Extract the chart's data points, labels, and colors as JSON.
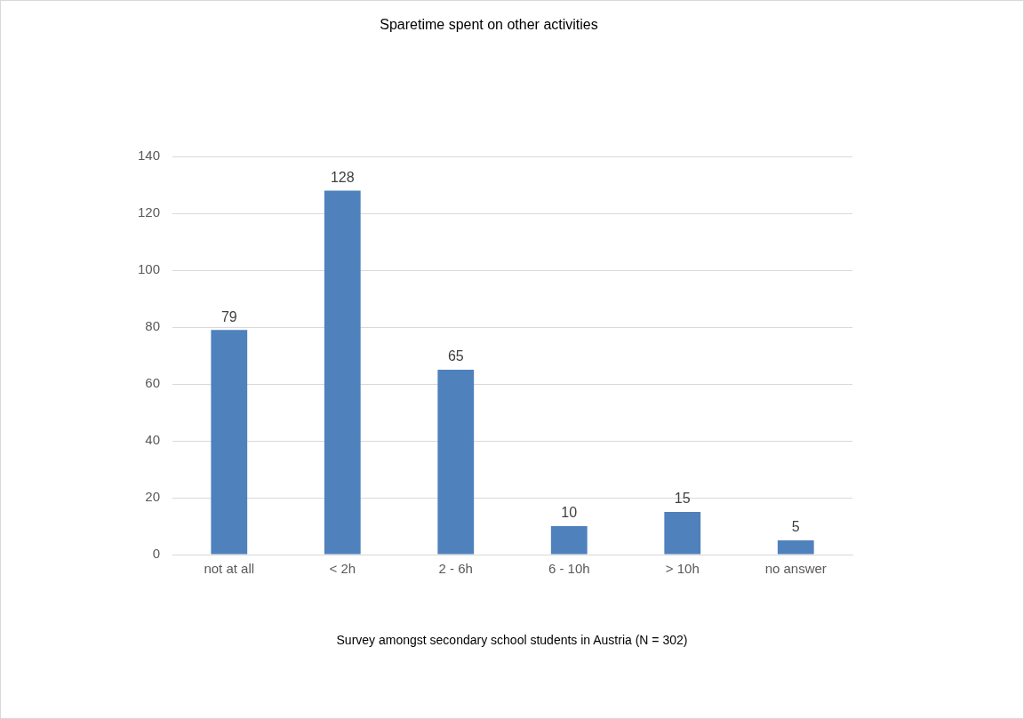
{
  "chart_data": {
    "type": "bar",
    "title": "Sparetime spent on other activities",
    "categories": [
      "not at all",
      "< 2h",
      "2 - 6h",
      "6 - 10h",
      "> 10h",
      "no answer"
    ],
    "values": [
      79,
      128,
      65,
      10,
      15,
      5
    ],
    "color": "#4f81bd",
    "ylim": [
      0,
      140
    ],
    "yticks": [
      0,
      20,
      40,
      60,
      80,
      100,
      120,
      140
    ],
    "grid": "y",
    "data_labels": true,
    "legend": false,
    "annotations": [
      "Survey amongst secondary school students in Austria (N = 302)"
    ]
  }
}
